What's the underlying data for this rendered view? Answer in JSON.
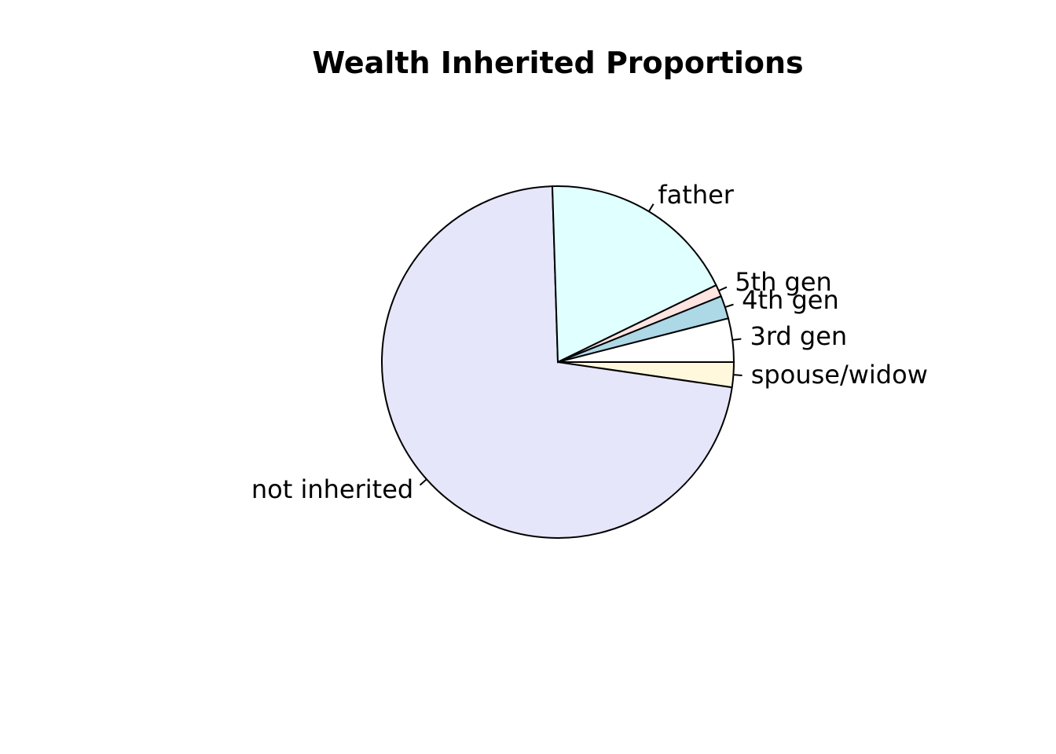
{
  "chart_data": {
    "type": "pie",
    "title": "Wealth Inherited Proportions",
    "slices": [
      {
        "label": "spouse/widow",
        "value": 2.3,
        "color": "#FFF8DC"
      },
      {
        "label": "not inherited",
        "value": 72.2,
        "color": "#E6E6FA"
      },
      {
        "label": "father",
        "value": 18.3,
        "color": "#E0FFFF"
      },
      {
        "label": "5th gen",
        "value": 1.1,
        "color": "#FFE4E1"
      },
      {
        "label": "4th gen",
        "value": 2.1,
        "color": "#ADD8E6"
      },
      {
        "label": "3rd gen",
        "value": 4.0,
        "color": "#FFFFFF"
      }
    ],
    "start_angle_deg": 0,
    "direction": "clockwise",
    "legend": "none"
  }
}
